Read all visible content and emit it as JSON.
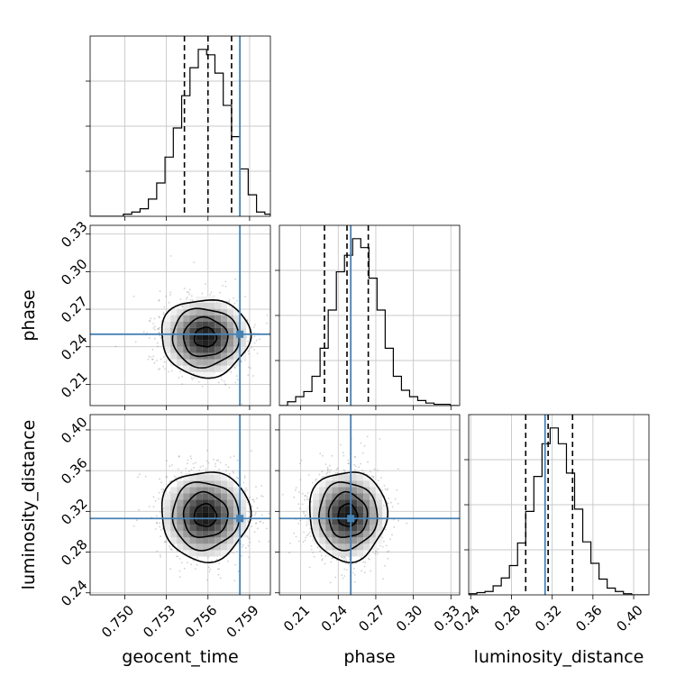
{
  "chart_data": {
    "type": "corner",
    "grid": true,
    "truth_color": "#4682b4",
    "quantile_line_color": "#000000",
    "parameters": [
      {
        "name": "geocent_time",
        "label": "geocent_time",
        "range": [
          0.7475,
          0.7605
        ],
        "ticks": [
          0.75,
          0.753,
          0.756,
          0.759
        ],
        "tick_labels": [
          "0.750",
          "0.753",
          "0.756",
          "0.759"
        ],
        "truth": 0.7583,
        "quantiles": [
          0.7543,
          0.756,
          0.7577
        ]
      },
      {
        "name": "phase",
        "label": "phase",
        "range": [
          0.193,
          0.337
        ],
        "ticks": [
          0.21,
          0.24,
          0.27,
          0.3,
          0.33
        ],
        "tick_labels": [
          "0.21",
          "0.24",
          "0.27",
          "0.30",
          "0.33"
        ],
        "truth": 0.25,
        "quantiles": [
          0.229,
          0.247,
          0.264
        ]
      },
      {
        "name": "luminosity_distance",
        "label": "luminosity_distance",
        "range": [
          0.238,
          0.415
        ],
        "ticks": [
          0.24,
          0.28,
          0.32,
          0.36,
          0.4
        ],
        "tick_labels": [
          "0.24",
          "0.28",
          "0.32",
          "0.36",
          "0.40"
        ],
        "truth": 0.313,
        "quantiles": [
          0.294,
          0.316,
          0.34
        ]
      }
    ],
    "histograms": [
      {
        "parameter": "geocent_time",
        "bin_edges": [
          0.7475,
          0.7481,
          0.7487,
          0.7493,
          0.7499,
          0.7505,
          0.7511,
          0.7517,
          0.7523,
          0.7529,
          0.7535,
          0.7541,
          0.7547,
          0.7553,
          0.7559,
          0.7565,
          0.7571,
          0.7577,
          0.7583,
          0.7589,
          0.7595,
          0.7601,
          0.7605
        ],
        "counts": [
          0,
          0,
          0,
          0,
          2,
          4,
          7,
          16,
          31,
          55,
          82,
          112,
          138,
          155,
          150,
          133,
          103,
          74,
          44,
          20,
          4,
          2
        ]
      },
      {
        "parameter": "phase",
        "bin_edges": [
          0.193,
          0.1995,
          0.206,
          0.2125,
          0.219,
          0.2255,
          0.232,
          0.2385,
          0.245,
          0.2515,
          0.258,
          0.2645,
          0.271,
          0.2775,
          0.284,
          0.2905,
          0.297,
          0.3035,
          0.31,
          0.3165,
          0.323,
          0.3295,
          0.336
        ],
        "counts": [
          0,
          3,
          7,
          11,
          23,
          45,
          75,
          105,
          118,
          131,
          124,
          100,
          75,
          45,
          23,
          12,
          7,
          4,
          2,
          1,
          1,
          0
        ]
      },
      {
        "parameter": "luminosity_distance",
        "bin_edges": [
          0.238,
          0.246,
          0.254,
          0.262,
          0.27,
          0.278,
          0.286,
          0.294,
          0.302,
          0.31,
          0.318,
          0.326,
          0.334,
          0.342,
          0.35,
          0.358,
          0.366,
          0.374,
          0.382,
          0.39,
          0.398,
          0.406,
          0.414
        ],
        "counts": [
          1,
          2,
          3,
          8,
          15,
          26,
          46,
          74,
          105,
          134,
          148,
          134,
          108,
          76,
          47,
          28,
          14,
          6,
          3,
          1,
          0,
          0
        ]
      }
    ],
    "pair_panels": [
      {
        "x": "geocent_time",
        "y": "phase",
        "center": [
          0.7558,
          0.2475
        ],
        "spread": [
          0.0016,
          0.0155
        ],
        "contour_levels": [
          "0.5 sigma",
          "1 sigma",
          "1.5 sigma",
          "2 sigma"
        ]
      },
      {
        "x": "geocent_time",
        "y": "luminosity_distance",
        "center": [
          0.7558,
          0.316
        ],
        "spread": [
          0.0016,
          0.022
        ],
        "contour_levels": [
          "0.5 sigma",
          "1 sigma",
          "1.5 sigma",
          "2 sigma"
        ]
      },
      {
        "x": "phase",
        "y": "luminosity_distance",
        "center": [
          0.2475,
          0.316
        ],
        "spread": [
          0.0155,
          0.022
        ],
        "contour_levels": [
          "0.5 sigma",
          "1 sigma",
          "1.5 sigma",
          "2 sigma"
        ]
      }
    ]
  }
}
